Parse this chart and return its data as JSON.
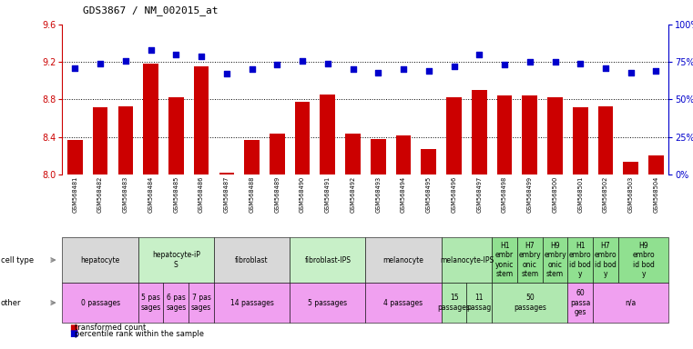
{
  "title": "GDS3867 / NM_002015_at",
  "samples": [
    "GSM568481",
    "GSM568482",
    "GSM568483",
    "GSM568484",
    "GSM568485",
    "GSM568486",
    "GSM568487",
    "GSM568488",
    "GSM568489",
    "GSM568490",
    "GSM568491",
    "GSM568492",
    "GSM568493",
    "GSM568494",
    "GSM568495",
    "GSM568496",
    "GSM568497",
    "GSM568498",
    "GSM568499",
    "GSM568500",
    "GSM568501",
    "GSM568502",
    "GSM568503",
    "GSM568504"
  ],
  "bar_values": [
    8.37,
    8.72,
    8.73,
    9.18,
    8.82,
    9.15,
    8.02,
    8.37,
    8.44,
    8.78,
    8.85,
    8.44,
    8.38,
    8.42,
    8.27,
    8.82,
    8.9,
    8.84,
    8.84,
    8.82,
    8.72,
    8.73,
    8.14,
    8.2
  ],
  "dot_values": [
    71,
    74,
    76,
    83,
    80,
    79,
    67,
    70,
    73,
    76,
    74,
    70,
    68,
    70,
    69,
    72,
    80,
    73,
    75,
    75,
    74,
    71,
    68,
    69
  ],
  "ylim_left": [
    8.0,
    9.6
  ],
  "ylim_right": [
    0,
    100
  ],
  "yticks_left": [
    8.0,
    8.4,
    8.8,
    9.2,
    9.6
  ],
  "yticks_right": [
    0,
    25,
    50,
    75,
    100
  ],
  "ytick_labels_right": [
    "0%",
    "25%",
    "50%",
    "75%",
    "100%"
  ],
  "bar_color": "#cc0000",
  "dot_color": "#0000cc",
  "bar_width": 0.6,
  "grid_lines": [
    8.4,
    8.8,
    9.2
  ],
  "cell_type_defs": [
    [
      0,
      3,
      "#d8d8d8",
      "hepatocyte"
    ],
    [
      3,
      6,
      "#c8f0c8",
      "hepatocyte-iP\nS"
    ],
    [
      6,
      9,
      "#d8d8d8",
      "fibroblast"
    ],
    [
      9,
      12,
      "#c8f0c8",
      "fibroblast-IPS"
    ],
    [
      12,
      15,
      "#d8d8d8",
      "melanocyte"
    ],
    [
      15,
      17,
      "#b0e8b0",
      "melanocyte-IPS"
    ],
    [
      17,
      18,
      "#90e090",
      "H1\nembr\nyonic\nstem"
    ],
    [
      18,
      19,
      "#90e090",
      "H7\nembry\nonic\nstem"
    ],
    [
      19,
      20,
      "#90e090",
      "H9\nembry\nonic\nstem"
    ],
    [
      20,
      21,
      "#90e090",
      "H1\nembro\nid bod\ny"
    ],
    [
      21,
      22,
      "#90e090",
      "H7\nembro\nid bod\ny"
    ],
    [
      22,
      24,
      "#90e090",
      "H9\nembro\nid bod\ny"
    ]
  ],
  "other_defs": [
    [
      0,
      3,
      "#f0a0f0",
      "0 passages"
    ],
    [
      3,
      4,
      "#f0a0f0",
      "5 pas\nsages"
    ],
    [
      4,
      5,
      "#f0a0f0",
      "6 pas\nsages"
    ],
    [
      5,
      6,
      "#f0a0f0",
      "7 pas\nsages"
    ],
    [
      6,
      9,
      "#f0a0f0",
      "14 passages"
    ],
    [
      9,
      12,
      "#f0a0f0",
      "5 passages"
    ],
    [
      12,
      15,
      "#f0a0f0",
      "4 passages"
    ],
    [
      15,
      16,
      "#b0e8b0",
      "15\npassages"
    ],
    [
      16,
      17,
      "#b0e8b0",
      "11\npassag"
    ],
    [
      17,
      20,
      "#b0e8b0",
      "50\npassages"
    ],
    [
      20,
      21,
      "#f0a0f0",
      "60\npassa\nges"
    ],
    [
      21,
      24,
      "#f0a0f0",
      "n/a"
    ]
  ]
}
